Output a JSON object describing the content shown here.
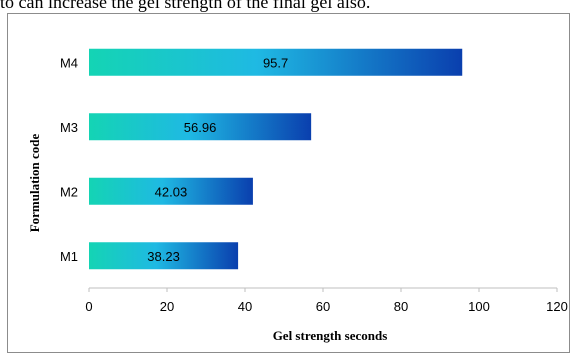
{
  "top_text": "to can increase the gel strength of the final gel also.",
  "chart_data": {
    "type": "bar",
    "orientation": "horizontal",
    "categories": [
      "M1",
      "M2",
      "M3",
      "M4"
    ],
    "values": [
      38.23,
      42.03,
      56.96,
      95.7
    ],
    "value_labels": [
      "38.23",
      "42.03",
      "56.96",
      "95.7"
    ],
    "title": "",
    "xlabel": "Gel strength seconds",
    "ylabel": "Formulation code",
    "xlim": [
      0,
      120
    ],
    "xticks": [
      "0",
      "20",
      "40",
      "60",
      "80",
      "100",
      "120"
    ],
    "grid": false,
    "legend": "none",
    "colors": {
      "bar_start": "#14d4b4",
      "bar_mid": "#1fb9e3",
      "bar_end": "#0a3fae",
      "axis": "#bfbfbf",
      "frame": "#8c8c8c"
    }
  }
}
